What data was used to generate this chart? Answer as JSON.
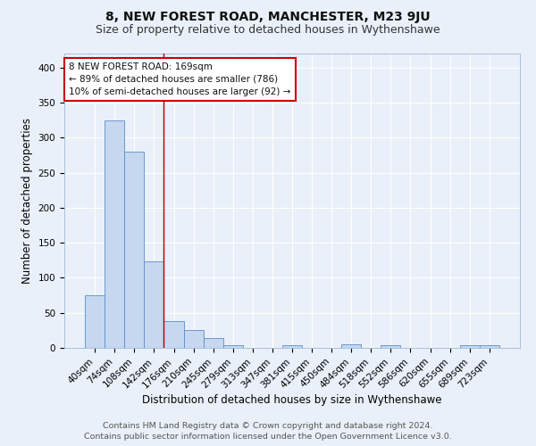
{
  "title": "8, NEW FOREST ROAD, MANCHESTER, M23 9JU",
  "subtitle": "Size of property relative to detached houses in Wythenshawe",
  "xlabel": "Distribution of detached houses by size in Wythenshawe",
  "ylabel": "Number of detached properties",
  "footer_line1": "Contains HM Land Registry data © Crown copyright and database right 2024.",
  "footer_line2": "Contains public sector information licensed under the Open Government Licence v3.0.",
  "annotation_line1": "8 NEW FOREST ROAD: 169sqm",
  "annotation_line2": "← 89% of detached houses are smaller (786)",
  "annotation_line3": "10% of semi-detached houses are larger (92) →",
  "bar_labels": [
    "40sqm",
    "74sqm",
    "108sqm",
    "142sqm",
    "176sqm",
    "210sqm",
    "245sqm",
    "279sqm",
    "313sqm",
    "347sqm",
    "381sqm",
    "415sqm",
    "450sqm",
    "484sqm",
    "518sqm",
    "552sqm",
    "586sqm",
    "620sqm",
    "655sqm",
    "689sqm",
    "723sqm"
  ],
  "bar_values": [
    75,
    325,
    280,
    123,
    38,
    25,
    14,
    4,
    0,
    0,
    4,
    0,
    0,
    5,
    0,
    4,
    0,
    0,
    0,
    4,
    4
  ],
  "bar_color": "#c5d8f0",
  "bar_edge_color": "#5b8cc8",
  "red_line_index": 4,
  "red_line_color": "#aa0000",
  "background_color": "#eaf0f9",
  "grid_color": "#ffffff",
  "ylim": [
    0,
    420
  ],
  "yticks": [
    0,
    50,
    100,
    150,
    200,
    250,
    300,
    350,
    400
  ],
  "title_fontsize": 10,
  "subtitle_fontsize": 9,
  "axis_label_fontsize": 8.5,
  "tick_fontsize": 7.5,
  "annotation_fontsize": 7.5,
  "footer_fontsize": 6.8
}
